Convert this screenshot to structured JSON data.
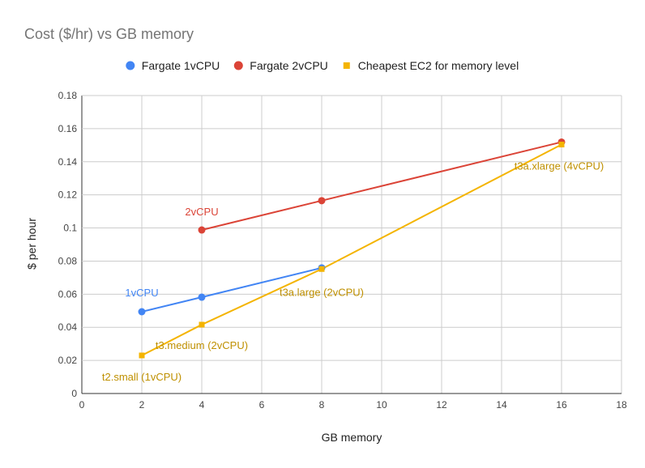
{
  "chart_data": {
    "type": "scatter",
    "title": "Cost ($/hr) vs GB memory",
    "xlabel": "GB memory",
    "ylabel": "$ per hour",
    "xlim": [
      0,
      18
    ],
    "ylim": [
      0,
      0.18
    ],
    "x_ticks": [
      "0",
      "2",
      "4",
      "6",
      "8",
      "10",
      "12",
      "14",
      "16",
      "18"
    ],
    "y_ticks": [
      "0",
      "0.02",
      "0.04",
      "0.06",
      "0.08",
      "0.1",
      "0.12",
      "0.14",
      "0.16",
      "0.18"
    ],
    "x_tick_values": [
      0,
      2,
      4,
      6,
      8,
      10,
      12,
      14,
      16,
      18
    ],
    "y_tick_values": [
      0,
      0.02,
      0.04,
      0.06,
      0.08,
      0.1,
      0.12,
      0.14,
      0.16,
      0.18
    ],
    "grid": true,
    "legend_position": "top",
    "series": [
      {
        "name": "Fargate 1vCPU",
        "color": "#4285F4",
        "marker": "circle",
        "points": [
          {
            "x": 2,
            "y": 0.0494
          },
          {
            "x": 4,
            "y": 0.0582
          },
          {
            "x": 8,
            "y": 0.0759
          }
        ]
      },
      {
        "name": "Fargate 2vCPU",
        "color": "#DB4437",
        "marker": "circle",
        "points": [
          {
            "x": 4,
            "y": 0.0988
          },
          {
            "x": 8,
            "y": 0.1165
          },
          {
            "x": 16,
            "y": 0.1519
          }
        ]
      },
      {
        "name": "Cheapest EC2 for memory level",
        "color": "#F4B400",
        "marker": "square",
        "points": [
          {
            "x": 2,
            "y": 0.023
          },
          {
            "x": 4,
            "y": 0.0416
          },
          {
            "x": 8,
            "y": 0.0752
          },
          {
            "x": 16,
            "y": 0.1504
          }
        ]
      }
    ],
    "annotations": [
      {
        "text": "1vCPU",
        "x": 2,
        "y": 0.0494,
        "color": "#4285F4",
        "anchor": "middle",
        "dx": 0,
        "dy": -19
      },
      {
        "text": "2vCPU",
        "x": 4,
        "y": 0.0988,
        "color": "#DB4437",
        "anchor": "middle",
        "dx": 0,
        "dy": -18
      },
      {
        "text": "t2.small (1vCPU)",
        "x": 2,
        "y": 0.023,
        "color": "#BF9000",
        "anchor": "middle",
        "dx": 0,
        "dy": 31
      },
      {
        "text": "t3.medium (2vCPU)",
        "x": 4,
        "y": 0.0416,
        "color": "#BF9000",
        "anchor": "middle",
        "dx": 0,
        "dy": 30
      },
      {
        "text": "t3a.large (2vCPU)",
        "x": 8,
        "y": 0.0752,
        "color": "#BF9000",
        "anchor": "middle",
        "dx": 0,
        "dy": 33
      },
      {
        "text": "t3a.xlarge (4vCPU)",
        "x": 16,
        "y": 0.1504,
        "color": "#BF9000",
        "anchor": "middle",
        "dx": -3,
        "dy": 31
      }
    ]
  }
}
